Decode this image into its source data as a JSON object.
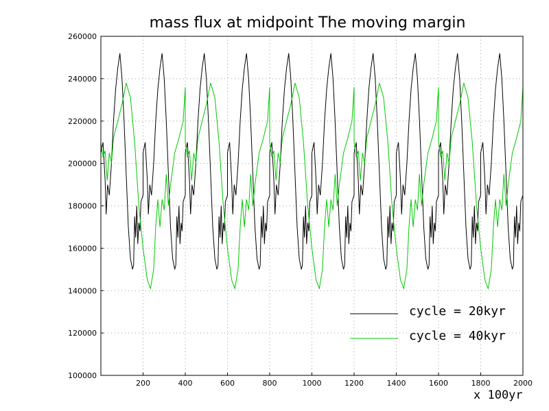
{
  "chart_data": {
    "type": "line",
    "title": "mass flux  at midpoint The moving margin",
    "xlabel": "x 100yr",
    "ylabel": "",
    "xlim": [
      0,
      2000
    ],
    "ylim": [
      100000,
      260000
    ],
    "x_ticks": [
      200,
      400,
      600,
      800,
      1000,
      1200,
      1400,
      1600,
      1800,
      2000
    ],
    "y_ticks": [
      100000,
      120000,
      140000,
      160000,
      180000,
      200000,
      220000,
      240000,
      260000
    ],
    "grid": true,
    "legend_position": "lower-right",
    "series": [
      {
        "name": "cycle = 20kyr",
        "color": "#000000",
        "period": 200,
        "points": [
          [
            0,
            205000
          ],
          [
            10,
            210000
          ],
          [
            20,
            192000
          ],
          [
            25,
            176000
          ],
          [
            32,
            190000
          ],
          [
            40,
            185000
          ],
          [
            50,
            200000
          ],
          [
            60,
            220000
          ],
          [
            70,
            235000
          ],
          [
            80,
            245000
          ],
          [
            90,
            252000
          ],
          [
            100,
            240000
          ],
          [
            110,
            220000
          ],
          [
            120,
            195000
          ],
          [
            130,
            170000
          ],
          [
            140,
            155000
          ],
          [
            150,
            150000
          ],
          [
            155,
            152000
          ],
          [
            160,
            175000
          ],
          [
            165,
            165000
          ],
          [
            170,
            180000
          ],
          [
            175,
            162000
          ],
          [
            180,
            172000
          ],
          [
            185,
            168000
          ],
          [
            190,
            182000
          ],
          [
            200,
            185000
          ]
        ]
      },
      {
        "name": "cycle = 40kyr",
        "color": "#00c800",
        "period": 400,
        "points": [
          [
            0,
            210000
          ],
          [
            10,
            203000
          ],
          [
            20,
            206000
          ],
          [
            30,
            192000
          ],
          [
            40,
            205000
          ],
          [
            50,
            200000
          ],
          [
            60,
            212000
          ],
          [
            80,
            220000
          ],
          [
            100,
            228000
          ],
          [
            120,
            238000
          ],
          [
            140,
            231000
          ],
          [
            160,
            210000
          ],
          [
            180,
            180000
          ],
          [
            200,
            160000
          ],
          [
            220,
            145000
          ],
          [
            235,
            141000
          ],
          [
            250,
            150000
          ],
          [
            260,
            170000
          ],
          [
            270,
            183000
          ],
          [
            280,
            170000
          ],
          [
            290,
            183000
          ],
          [
            300,
            178000
          ],
          [
            310,
            195000
          ],
          [
            320,
            180000
          ],
          [
            330,
            190000
          ],
          [
            350,
            205000
          ],
          [
            370,
            212000
          ],
          [
            390,
            220000
          ],
          [
            400,
            236000
          ]
        ]
      }
    ]
  }
}
